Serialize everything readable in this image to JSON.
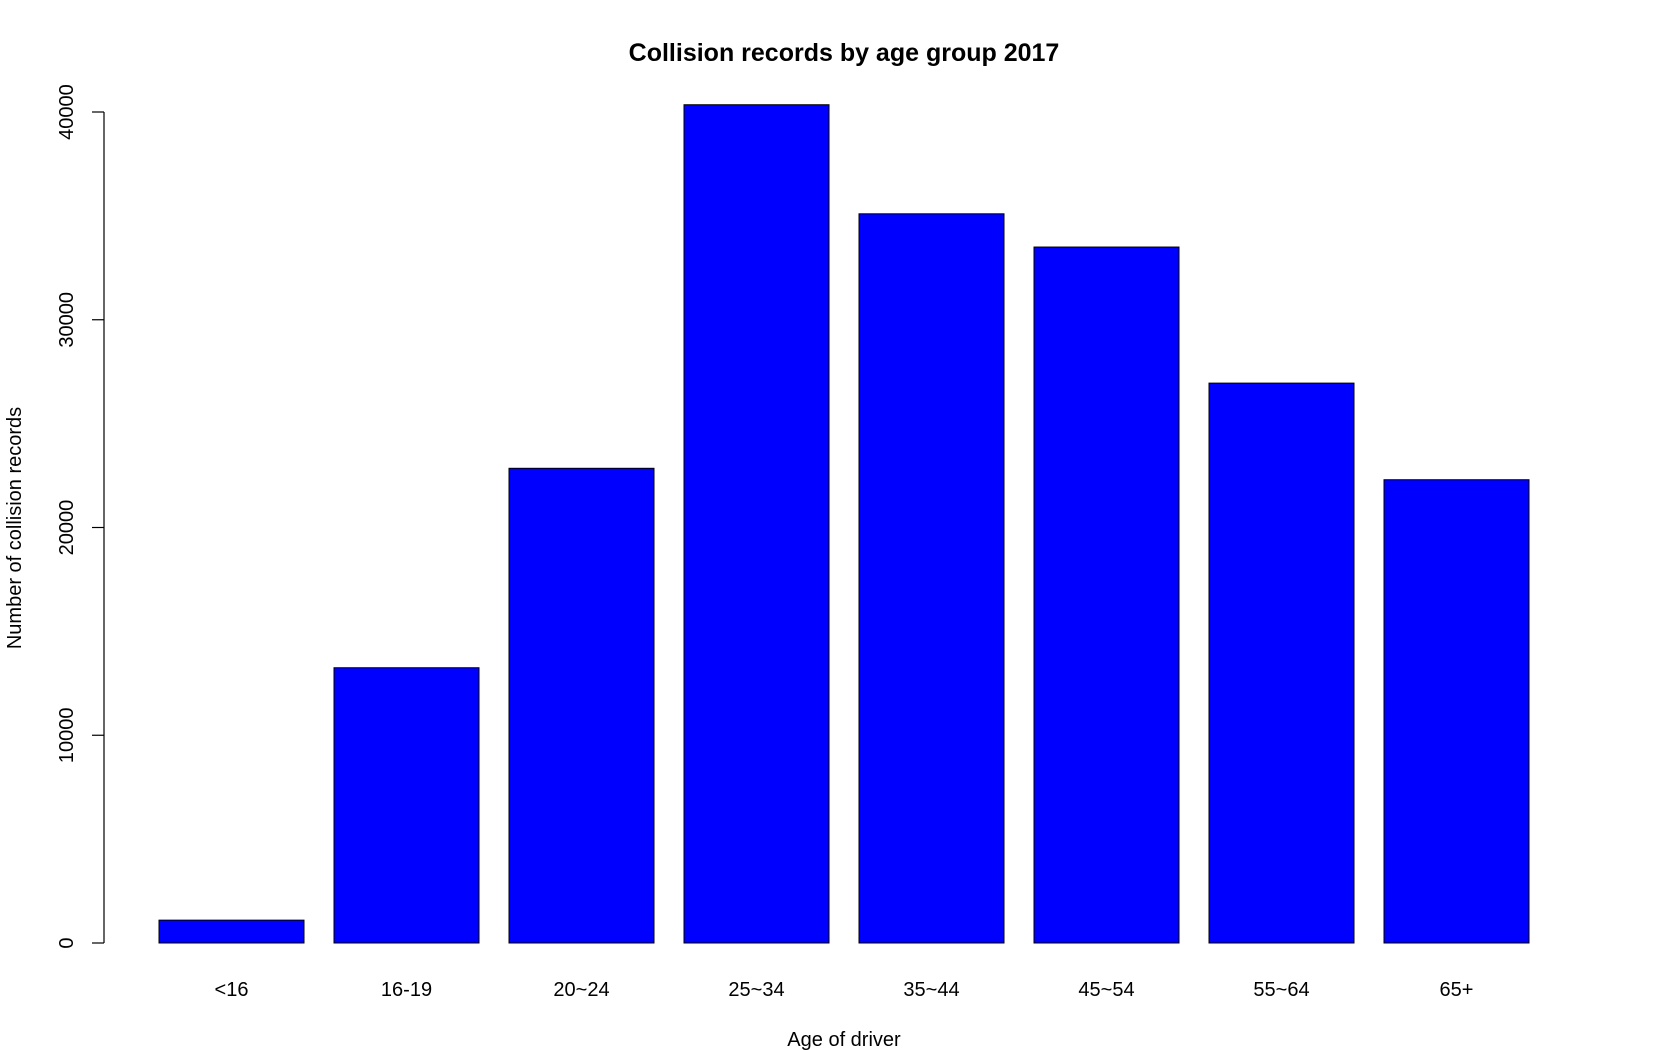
{
  "chart_data": {
    "type": "bar",
    "title": "Collision records by age group 2017",
    "xlabel": "Age of driver",
    "ylabel": "Number of collision records",
    "categories": [
      "<16",
      "16-19",
      "20~24",
      "25~34",
      "35~44",
      "45~54",
      "55~64",
      "65+"
    ],
    "values": [
      1100,
      13250,
      22850,
      40350,
      35100,
      33500,
      26950,
      22300
    ],
    "y_ticks": [
      0,
      10000,
      20000,
      30000,
      40000
    ],
    "ylim": [
      0,
      40500
    ],
    "grid": false,
    "bar_color": "#0000ff",
    "bar_border_color": "#000000"
  }
}
